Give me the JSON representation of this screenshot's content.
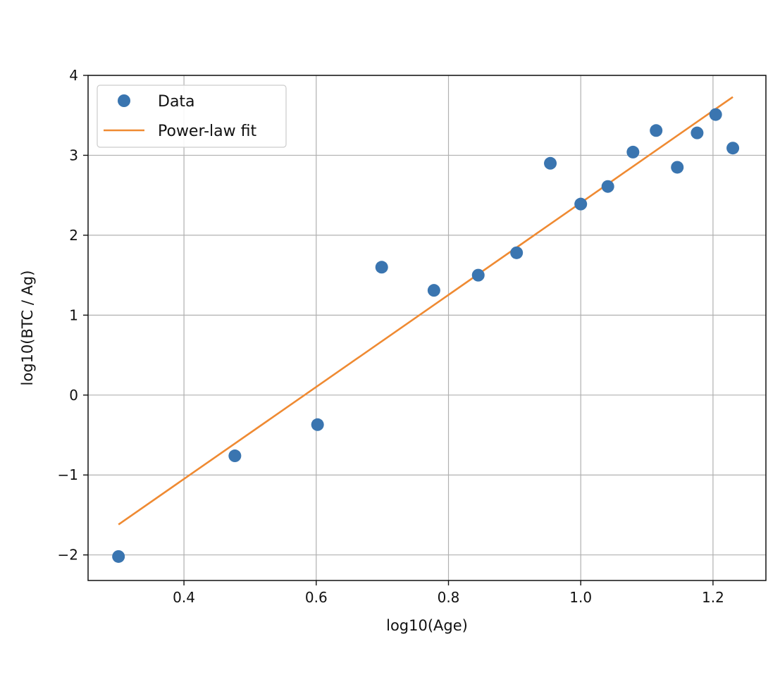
{
  "chart_data": {
    "type": "scatter",
    "title": "",
    "xlabel": "log10(Age)",
    "ylabel": "log10(BTC / Ag)",
    "xlim": [
      0.255,
      1.28
    ],
    "ylim": [
      -2.32,
      4.0
    ],
    "grid": true,
    "legend": {
      "position": "top-left",
      "entries": [
        "Data",
        "Power-law fit"
      ]
    },
    "x_ticks": [
      0.4,
      0.6,
      0.8,
      1.0,
      1.2
    ],
    "x_tick_labels": [
      "0.4",
      "0.6",
      "0.8",
      "1.0",
      "1.2"
    ],
    "y_ticks": [
      -2,
      -1,
      0,
      1,
      2,
      3,
      4
    ],
    "y_tick_labels": [
      "−2",
      "−1",
      "0",
      "1",
      "2",
      "3",
      "4"
    ],
    "series": [
      {
        "name": "Data",
        "kind": "scatter",
        "color": "#3a75b0",
        "x": [
          0.301,
          0.477,
          0.602,
          0.699,
          0.778,
          0.845,
          0.903,
          0.954,
          1.0,
          1.041,
          1.079,
          1.114,
          1.146,
          1.176,
          1.204,
          1.23
        ],
        "y": [
          -2.02,
          -0.76,
          -0.37,
          1.6,
          1.31,
          1.5,
          1.78,
          2.9,
          2.39,
          2.61,
          3.04,
          3.31,
          2.85,
          3.28,
          3.51,
          3.09
        ]
      },
      {
        "name": "Power-law fit",
        "kind": "line",
        "color": "#ef8a32",
        "x": [
          0.301,
          1.23
        ],
        "y": [
          -1.62,
          3.73
        ]
      }
    ]
  }
}
